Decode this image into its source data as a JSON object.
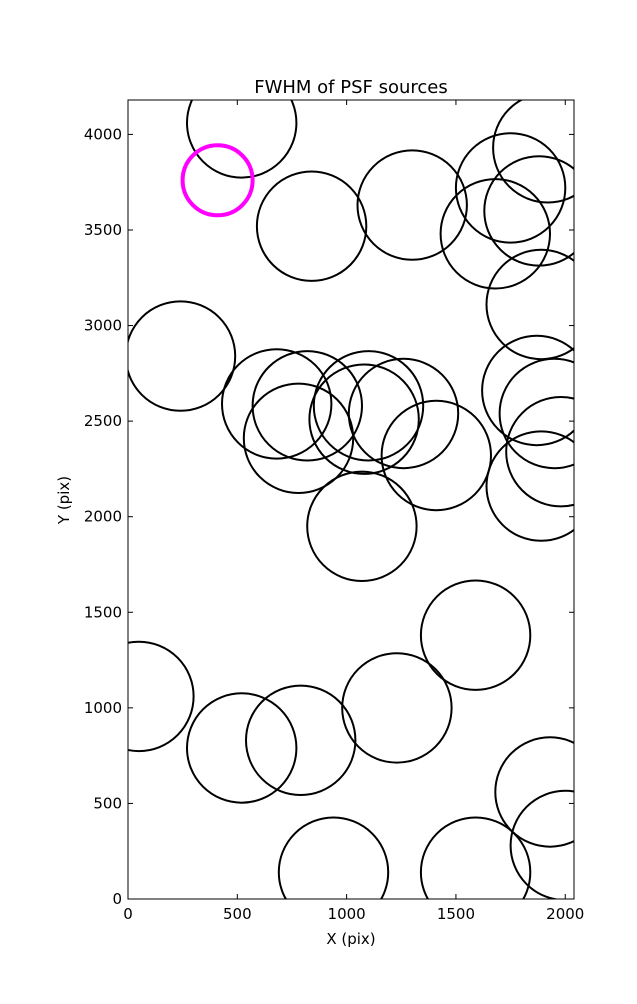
{
  "chart_data": {
    "type": "scatter",
    "title": "FWHM of PSF sources",
    "xlabel": "X (pix)",
    "ylabel": "Y (pix)",
    "xlim": [
      0,
      2040
    ],
    "ylim": [
      0,
      4180
    ],
    "xticks": [
      0,
      500,
      1000,
      1500,
      2000
    ],
    "yticks": [
      0,
      500,
      1000,
      1500,
      2000,
      2500,
      3000,
      3500,
      4000
    ],
    "grid": false,
    "marker": "open-circle",
    "marker_color": "#000000",
    "highlight_color": "#ff00ff",
    "series": [
      {
        "points": [
          {
            "x": 520,
            "y": 4060,
            "r": 250
          },
          {
            "x": 840,
            "y": 3520,
            "r": 250
          },
          {
            "x": 1300,
            "y": 3630,
            "r": 250
          },
          {
            "x": 1750,
            "y": 3720,
            "r": 250
          },
          {
            "x": 1920,
            "y": 3930,
            "r": 250
          },
          {
            "x": 1680,
            "y": 3480,
            "r": 250
          },
          {
            "x": 1880,
            "y": 3600,
            "r": 250
          },
          {
            "x": 1890,
            "y": 3110,
            "r": 250
          },
          {
            "x": 240,
            "y": 2840,
            "r": 250
          },
          {
            "x": 680,
            "y": 2590,
            "r": 250
          },
          {
            "x": 820,
            "y": 2580,
            "r": 250
          },
          {
            "x": 780,
            "y": 2410,
            "r": 250
          },
          {
            "x": 1100,
            "y": 2580,
            "r": 250
          },
          {
            "x": 1080,
            "y": 2510,
            "r": 250
          },
          {
            "x": 1260,
            "y": 2540,
            "r": 250
          },
          {
            "x": 1410,
            "y": 2320,
            "r": 250
          },
          {
            "x": 1870,
            "y": 2660,
            "r": 250
          },
          {
            "x": 1950,
            "y": 2540,
            "r": 250
          },
          {
            "x": 1980,
            "y": 2340,
            "r": 250
          },
          {
            "x": 1890,
            "y": 2160,
            "r": 250
          },
          {
            "x": 1070,
            "y": 1950,
            "r": 250
          },
          {
            "x": 1590,
            "y": 1380,
            "r": 250
          },
          {
            "x": 50,
            "y": 1060,
            "r": 250
          },
          {
            "x": 1230,
            "y": 1000,
            "r": 250
          },
          {
            "x": 520,
            "y": 790,
            "r": 250
          },
          {
            "x": 790,
            "y": 830,
            "r": 250
          },
          {
            "x": 1930,
            "y": 560,
            "r": 250
          },
          {
            "x": 2000,
            "y": 280,
            "r": 250
          },
          {
            "x": 940,
            "y": 140,
            "r": 250
          },
          {
            "x": 1590,
            "y": 140,
            "r": 250
          }
        ]
      },
      {
        "highlight": true,
        "points": [
          {
            "x": 410,
            "y": 3760,
            "r": 160
          }
        ]
      }
    ]
  }
}
